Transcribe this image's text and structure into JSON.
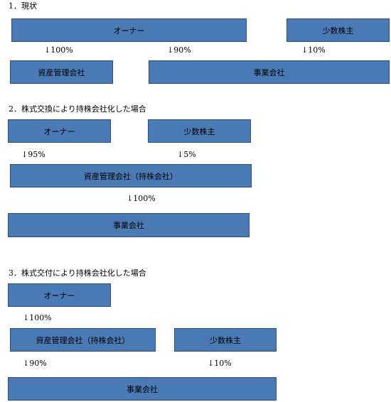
{
  "colors": {
    "box_fill": "#4a7ab5",
    "box_border": "#2f4f7a",
    "box_text": "#000000"
  },
  "section1": {
    "heading": "1．現状",
    "boxes": {
      "owner": "オーナー",
      "minority": "少数株主",
      "asset_company": "資産管理会社",
      "business": "事業会社"
    },
    "arrows": {
      "a1": "↓100%",
      "a2": "↓90%",
      "a3": "↓10%"
    }
  },
  "section2": {
    "heading": "2．株式交換により持株会社化した場合",
    "boxes": {
      "owner": "オーナー",
      "minority": "少数株主",
      "holding": "資産管理会社（持株会社）",
      "business": "事業会社"
    },
    "arrows": {
      "a1": "↓95%",
      "a2": "↓5%",
      "a3": "↓100%"
    }
  },
  "section3": {
    "heading": "3．株式交付により持株会社化した場合",
    "boxes": {
      "owner": "オーナー",
      "holding": "資産管理会社（持株会社）",
      "minority": "少数株主",
      "business": "事業会社"
    },
    "arrows": {
      "a1": "↓100%",
      "a2": "↓90%",
      "a3": "↓10%"
    }
  }
}
